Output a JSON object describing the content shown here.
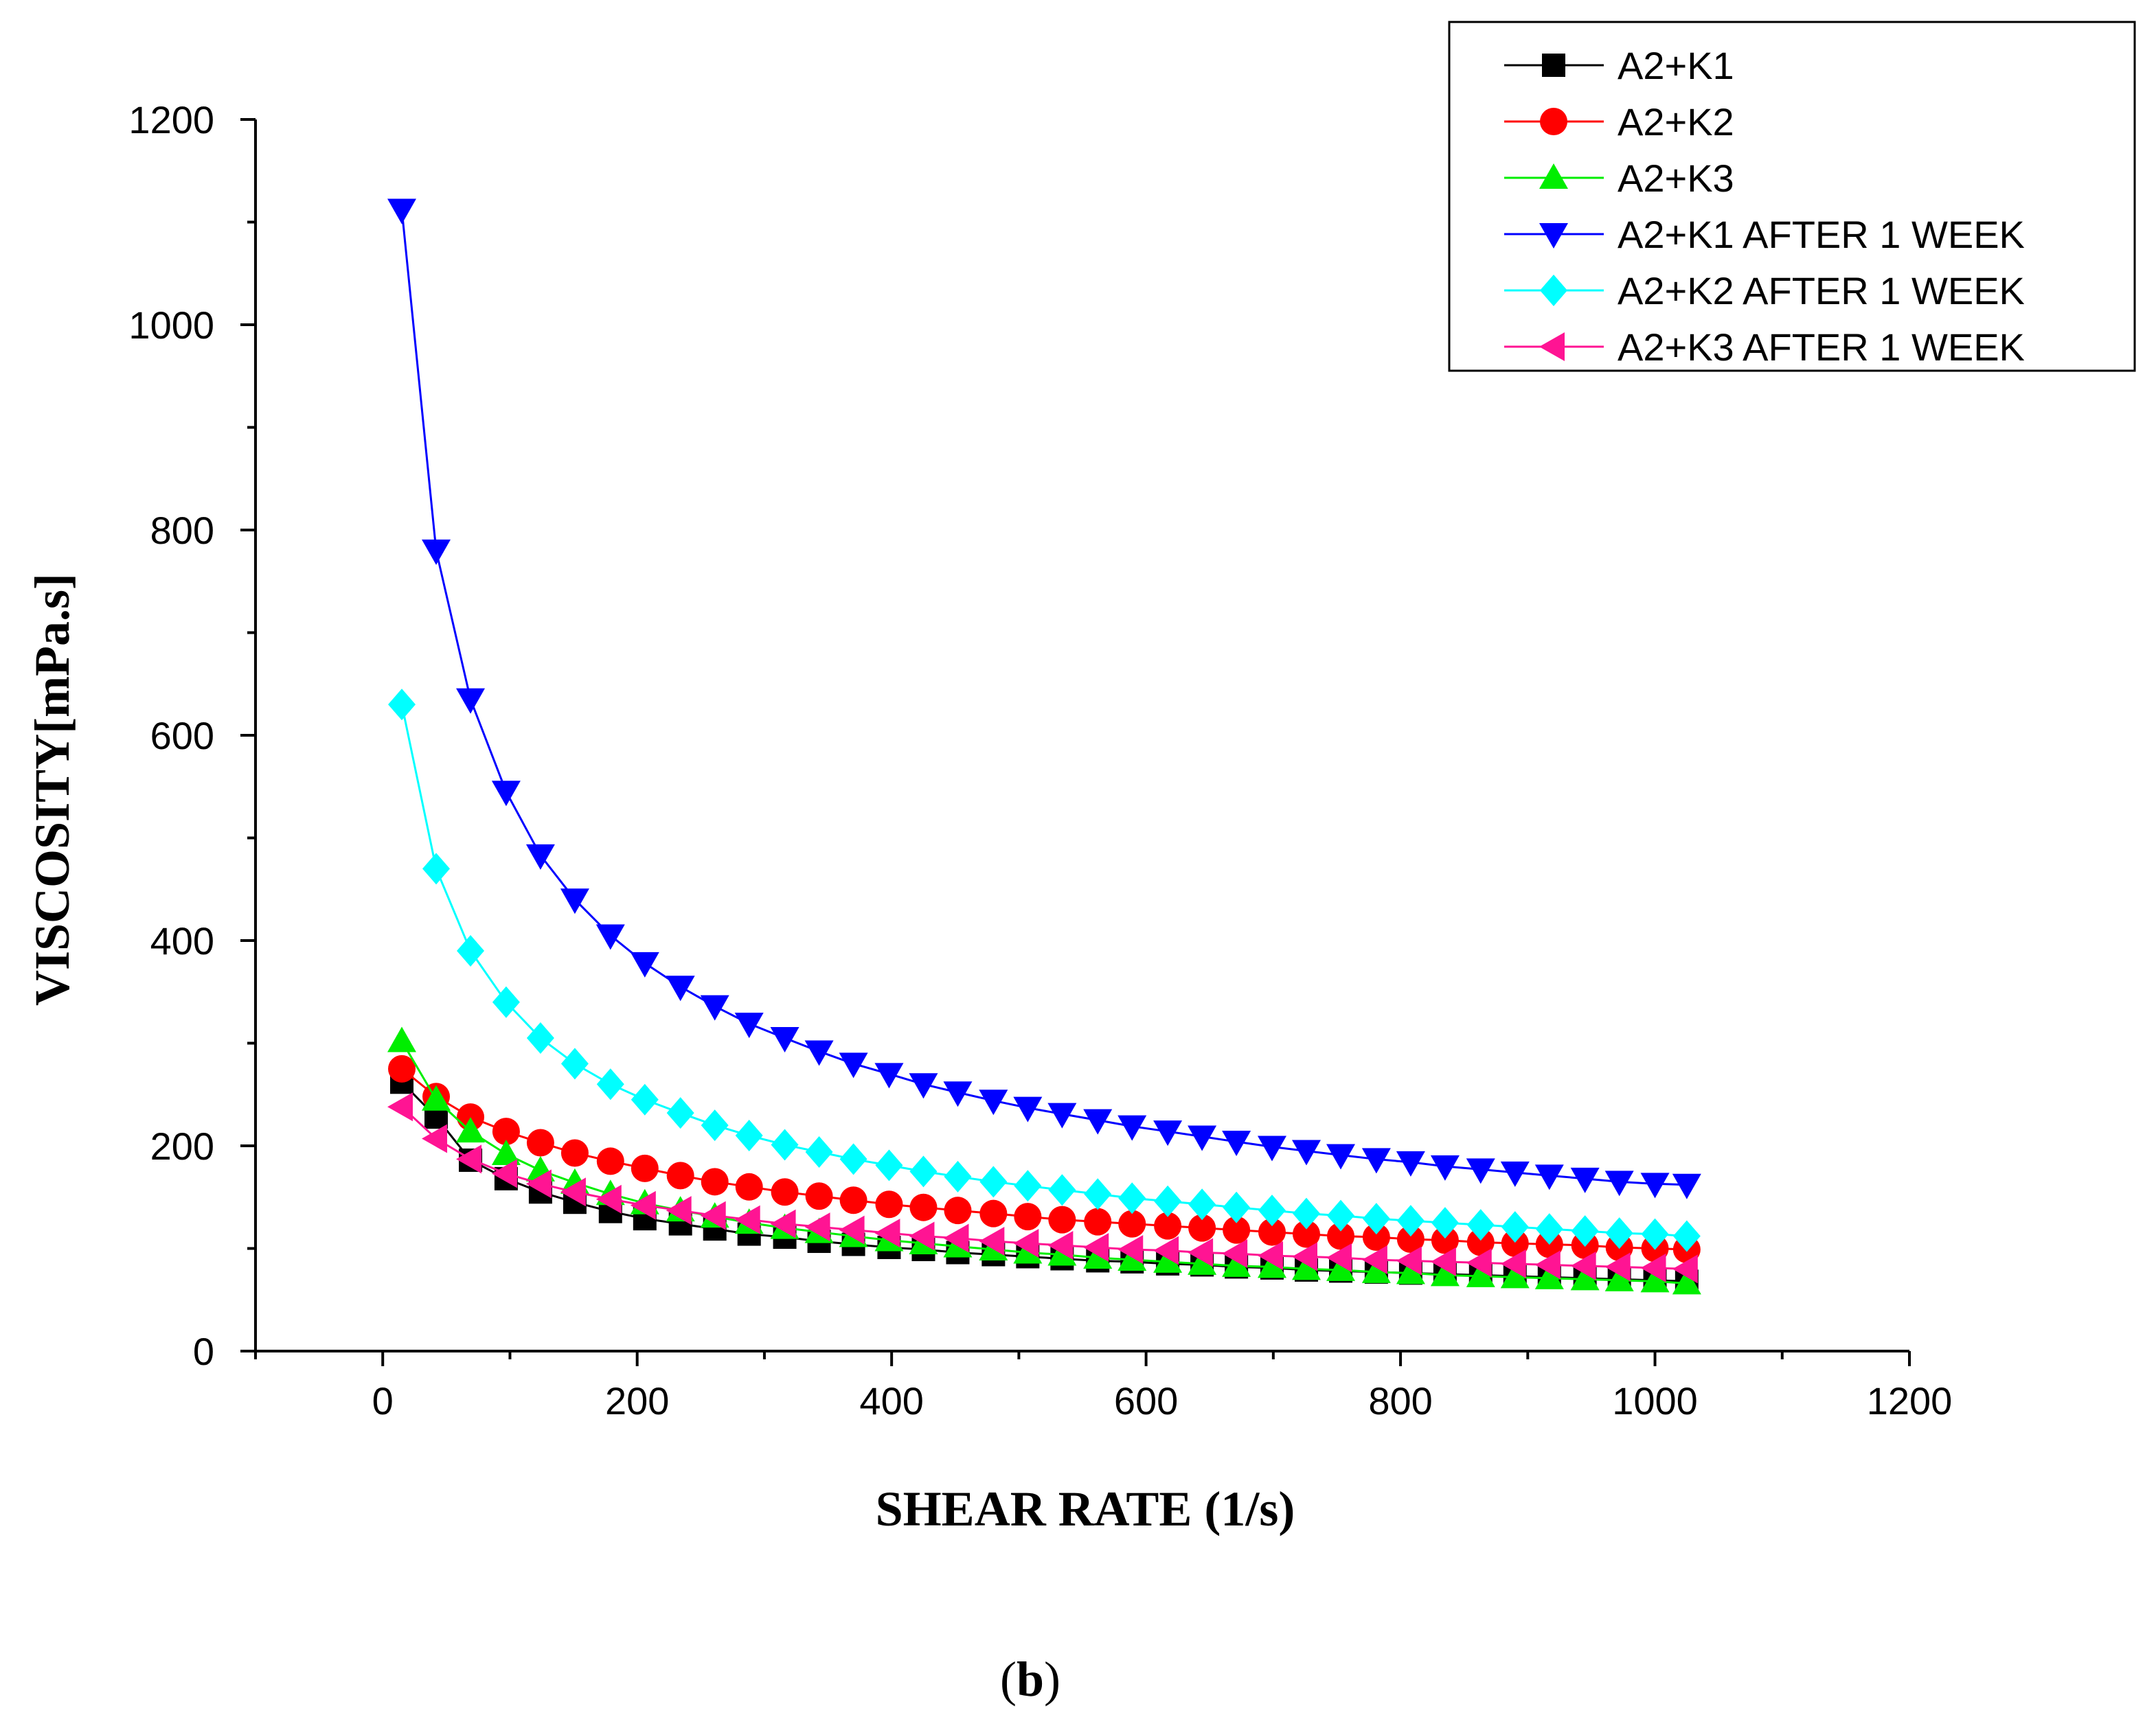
{
  "chart_data": {
    "type": "line",
    "xlabel": "SHEAR RATE (1/s)",
    "ylabel": "VISCOSITY[mPa.s]",
    "xlim": [
      -100,
      1200
    ],
    "ylim": [
      0,
      1200
    ],
    "xticks": [
      0,
      200,
      400,
      600,
      800,
      1000,
      1200
    ],
    "yticks": [
      0,
      200,
      400,
      600,
      800,
      1000,
      1200
    ],
    "legend_position": "top-right",
    "x": [
      15,
      42,
      69,
      97,
      124,
      151,
      179,
      206,
      234,
      261,
      288,
      316,
      343,
      370,
      398,
      425,
      452,
      480,
      507,
      534,
      562,
      589,
      617,
      644,
      671,
      699,
      726,
      753,
      781,
      808,
      835,
      863,
      890,
      917,
      945,
      972,
      1000,
      1025
    ],
    "series": [
      {
        "name": "A2+K1",
        "color": "#000000",
        "marker": "square",
        "values": [
          262,
          228,
          186,
          168,
          155,
          145,
          136,
          129,
          124,
          119,
          114,
          111,
          107,
          104,
          101,
          99,
          96,
          94,
          92,
          90,
          88,
          87,
          85,
          84,
          82,
          81,
          79,
          78,
          77,
          76,
          75,
          74,
          73,
          72,
          71,
          70,
          69,
          68
        ]
      },
      {
        "name": "A2+K2",
        "color": "#ff0000",
        "marker": "circle",
        "values": [
          275,
          248,
          228,
          214,
          203,
          193,
          185,
          178,
          171,
          165,
          160,
          155,
          151,
          147,
          143,
          140,
          137,
          134,
          131,
          128,
          126,
          124,
          122,
          120,
          118,
          116,
          114,
          112,
          111,
          109,
          108,
          106,
          105,
          104,
          103,
          101,
          100,
          99
        ]
      },
      {
        "name": "A2+K3",
        "color": "#00ee00",
        "marker": "triangle-up",
        "values": [
          302,
          245,
          214,
          192,
          176,
          164,
          153,
          144,
          137,
          131,
          125,
          120,
          116,
          112,
          108,
          105,
          102,
          99,
          96,
          94,
          91,
          89,
          87,
          85,
          83,
          82,
          80,
          79,
          77,
          76,
          74,
          73,
          72,
          71,
          70,
          69,
          68,
          66
        ]
      },
      {
        "name": "A2+K1 AFTER 1 WEEK",
        "color": "#0000ff",
        "marker": "triangle-down",
        "values": [
          1112,
          780,
          635,
          545,
          483,
          440,
          405,
          378,
          355,
          336,
          319,
          305,
          292,
          280,
          270,
          260,
          252,
          244,
          237,
          231,
          225,
          219,
          214,
          209,
          204,
          199,
          195,
          191,
          187,
          184,
          180,
          177,
          174,
          171,
          168,
          165,
          163,
          162
        ]
      },
      {
        "name": "A2+K2 AFTER 1 WEEK",
        "color": "#00ffff",
        "marker": "diamond",
        "values": [
          630,
          470,
          390,
          340,
          305,
          280,
          260,
          245,
          232,
          220,
          210,
          201,
          194,
          187,
          181,
          175,
          170,
          165,
          161,
          157,
          153,
          149,
          146,
          143,
          140,
          137,
          134,
          132,
          129,
          127,
          125,
          123,
          121,
          119,
          117,
          115,
          114,
          112
        ]
      },
      {
        "name": "A2+K3 AFTER 1 WEEK",
        "color": "#ff1493",
        "marker": "triangle-left",
        "values": [
          238,
          207,
          187,
          173,
          163,
          155,
          148,
          142,
          137,
          132,
          128,
          124,
          121,
          118,
          115,
          112,
          110,
          107,
          105,
          103,
          101,
          99,
          98,
          96,
          95,
          93,
          92,
          91,
          89,
          88,
          87,
          86,
          85,
          84,
          83,
          82,
          81,
          80
        ]
      }
    ]
  },
  "caption": {
    "open": "(",
    "letter": "b",
    "close": ")"
  }
}
